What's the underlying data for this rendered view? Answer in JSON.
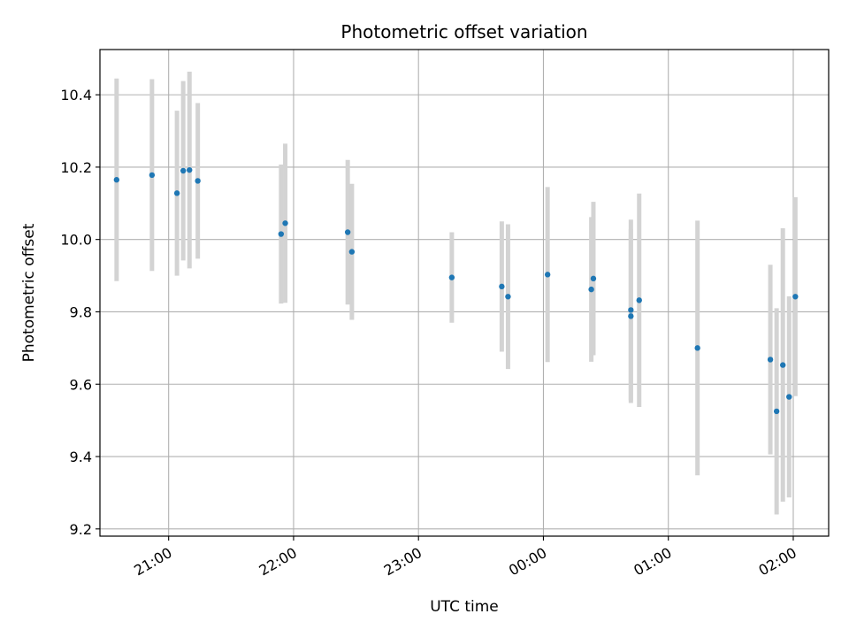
{
  "chart_data": {
    "type": "scatter",
    "title": "Photometric offset variation",
    "xlabel": "UTC time",
    "ylabel": "Photometric offset",
    "x_axis": "time",
    "x_ticks": [
      "21:00",
      "22:00",
      "23:00",
      "00:00",
      "01:00",
      "02:00"
    ],
    "y_ticks": [
      "9.2",
      "9.4",
      "9.6",
      "9.8",
      "10.0",
      "10.2",
      "10.4"
    ],
    "ylim": [
      9.18,
      10.525
    ],
    "xlim": [
      "20:27",
      "02:17"
    ],
    "grid": true,
    "marker_color": "#1f77b4",
    "errorbar_color": "#d3d3d3",
    "points": [
      {
        "time": "20:35",
        "y": 10.165,
        "err": 0.28
      },
      {
        "time": "20:52",
        "y": 10.178,
        "err": 0.265
      },
      {
        "time": "21:04",
        "y": 10.128,
        "err": 0.228
      },
      {
        "time": "21:07",
        "y": 10.19,
        "err": 0.248
      },
      {
        "time": "21:10",
        "y": 10.192,
        "err": 0.272
      },
      {
        "time": "21:14",
        "y": 10.162,
        "err": 0.215
      },
      {
        "time": "21:54",
        "y": 10.015,
        "err": 0.192
      },
      {
        "time": "21:56",
        "y": 10.045,
        "err": 0.22
      },
      {
        "time": "22:26",
        "y": 10.02,
        "err": 0.2
      },
      {
        "time": "22:28",
        "y": 9.966,
        "err": 0.188
      },
      {
        "time": "23:16",
        "y": 9.895,
        "err": 0.125
      },
      {
        "time": "23:40",
        "y": 9.87,
        "err": 0.18
      },
      {
        "time": "23:43",
        "y": 9.842,
        "err": 0.2
      },
      {
        "time": "00:02",
        "y": 9.903,
        "err": 0.242
      },
      {
        "time": "00:23",
        "y": 9.862,
        "err": 0.2
      },
      {
        "time": "00:24",
        "y": 9.892,
        "err": 0.212
      },
      {
        "time": "00:42",
        "y": 9.788,
        "err": 0.24
      },
      {
        "time": "00:42",
        "y": 9.805,
        "err": 0.25
      },
      {
        "time": "00:46",
        "y": 9.832,
        "err": 0.295
      },
      {
        "time": "01:14",
        "y": 9.7,
        "err": 0.352
      },
      {
        "time": "01:49",
        "y": 9.668,
        "err": 0.262
      },
      {
        "time": "01:52",
        "y": 9.525,
        "err": 0.285
      },
      {
        "time": "01:55",
        "y": 9.653,
        "err": 0.378
      },
      {
        "time": "01:58",
        "y": 9.565,
        "err": 0.278
      },
      {
        "time": "02:01",
        "y": 9.842,
        "err": 0.275
      }
    ]
  }
}
